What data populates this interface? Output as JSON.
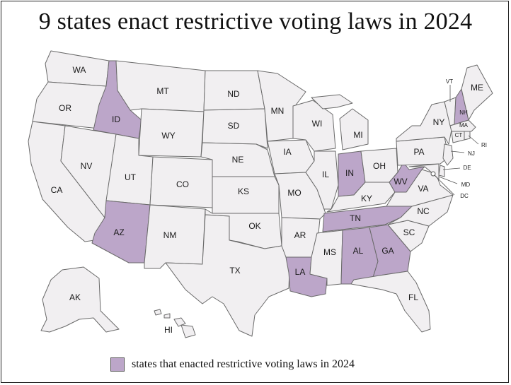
{
  "title": "9 states enact restrictive voting laws in 2024",
  "colors": {
    "highlight": "#bca6c9",
    "base": "#f1eff1",
    "border": "#6a6a6a"
  },
  "legend": {
    "label": "states that enacted restrictive voting laws in 2024"
  },
  "highlighted_states": [
    "ID",
    "AZ",
    "LA",
    "AL",
    "GA",
    "TN",
    "IN",
    "WV",
    "NH"
  ],
  "state_labels": {
    "WA": "WA",
    "OR": "OR",
    "CA": "CA",
    "ID": "ID",
    "NV": "NV",
    "MT": "MT",
    "WY": "WY",
    "UT": "UT",
    "AZ": "AZ",
    "CO": "CO",
    "NM": "NM",
    "ND": "ND",
    "SD": "SD",
    "NE": "NE",
    "KS": "KS",
    "OK": "OK",
    "TX": "TX",
    "MN": "MN",
    "IA": "IA",
    "MO": "MO",
    "AR": "AR",
    "LA": "LA",
    "WI": "WI",
    "IL": "IL",
    "MS": "MS",
    "MI": "MI",
    "IN": "IN",
    "KY": "KY",
    "TN": "TN",
    "AL": "AL",
    "OH": "OH",
    "GA": "GA",
    "FL": "FL",
    "SC": "SC",
    "NC": "NC",
    "VA": "VA",
    "WV": "WV",
    "PA": "PA",
    "NY": "NY",
    "VT": "VT",
    "NH": "NH",
    "ME": "ME",
    "MA": "MA",
    "CT": "CT",
    "RI": "RI",
    "NJ": "NJ",
    "DE": "DE",
    "MD": "MD",
    "DC": "DC",
    "AK": "AK",
    "HI": "HI"
  }
}
